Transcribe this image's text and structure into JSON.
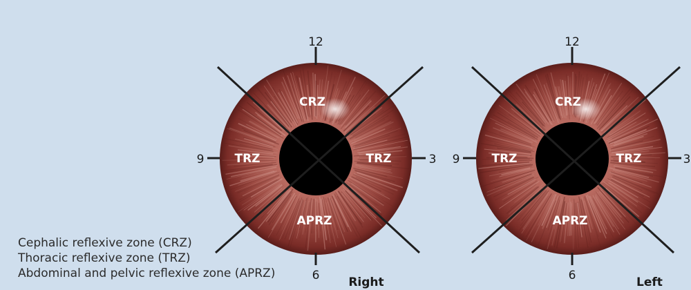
{
  "diagram": {
    "eyes": [
      {
        "caption": "Right",
        "zones": {
          "top": "CRZ",
          "left": "TRZ",
          "right": "TRZ",
          "bottom": "APRZ"
        },
        "clock": {
          "top": "12",
          "left": "9",
          "right": "3",
          "bottom": "6"
        }
      },
      {
        "caption": "Left",
        "zones": {
          "top": "CRZ",
          "left": "TRZ",
          "right": "TRZ",
          "bottom": "APRZ"
        },
        "clock": {
          "top": "12",
          "left": "9",
          "right": "3",
          "bottom": "6"
        }
      }
    ],
    "legend": [
      "Cephalic reflexive zone (CRZ)",
      "Thoracic reflexive zone (TRZ)",
      "Abdominal and pelvic reflexive zone (APRZ)"
    ],
    "colors": {
      "background": "#cfdeed",
      "iris": "#8e3b34",
      "pupil": "#000000",
      "lines": "#1e1e1e"
    }
  }
}
